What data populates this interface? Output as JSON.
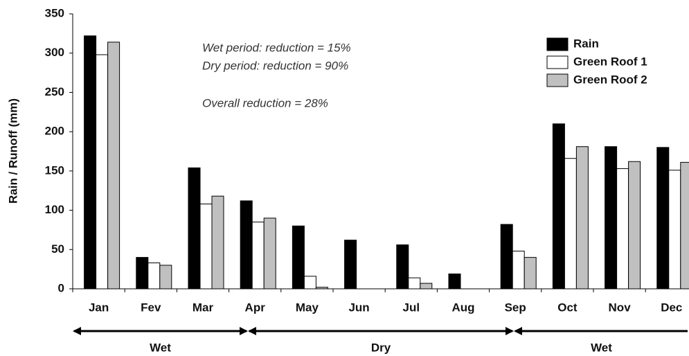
{
  "chart_data": {
    "type": "bar",
    "y_label": "Rain / Runoff (mm)",
    "annotations": [
      "Wet period: reduction = 15%",
      "Dry period: reduction = 90%",
      "Overall reduction = 28%"
    ],
    "categories": [
      "Jan",
      "Fev",
      "Mar",
      "Apr",
      "May",
      "Jun",
      "Jul",
      "Aug",
      "Sep",
      "Oct",
      "Nov",
      "Dec"
    ],
    "series": [
      {
        "name": "Rain",
        "color": "#000000",
        "values": [
          322,
          40,
          154,
          112,
          80,
          62,
          56,
          19,
          82,
          210,
          181,
          180
        ]
      },
      {
        "name": "Green Roof 1",
        "color": "#ffffff",
        "values": [
          298,
          33,
          108,
          85,
          16,
          0,
          14,
          0,
          48,
          166,
          153,
          151
        ]
      },
      {
        "name": "Green Roof 2",
        "color": "#c0c0c0",
        "values": [
          314,
          30,
          118,
          90,
          2,
          0,
          7,
          0,
          40,
          181,
          162,
          161
        ]
      }
    ],
    "periods": [
      "Wet",
      "Dry",
      "Wet"
    ],
    "ylim": [
      0,
      350
    ],
    "yticks": [
      0,
      50,
      100,
      150,
      200,
      250,
      300,
      350
    ],
    "legend": "top-right"
  }
}
